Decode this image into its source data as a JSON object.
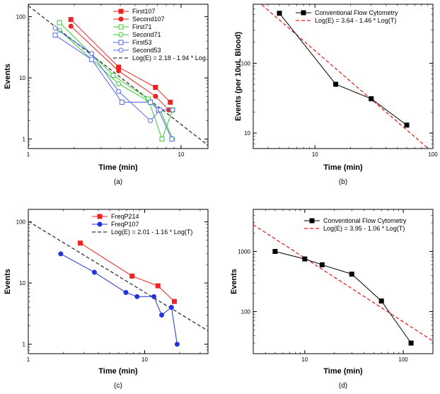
{
  "chart_data": [
    {
      "id": "a",
      "caption": "(a)",
      "type": "line",
      "xscale": "log",
      "yscale": "log",
      "xlim": [
        1,
        15
      ],
      "ylim": [
        0.7,
        160
      ],
      "xticks": [
        1,
        10
      ],
      "yticks": [
        1,
        10,
        100
      ],
      "xlabel": "Time (min)",
      "ylabel": "Events",
      "legend_position": "top-right",
      "series": [
        {
          "name": "First107",
          "color": "#ee2222",
          "marker": "filled-square",
          "x": [
            1.9,
            3.9,
            6.8,
            8.5
          ],
          "y": [
            90,
            15,
            7,
            4
          ]
        },
        {
          "name": "Second107",
          "color": "#ee2222",
          "marker": "filled-circle",
          "x": [
            1.9,
            3.9,
            6.8,
            8.3
          ],
          "y": [
            70,
            13,
            5,
            3
          ]
        },
        {
          "name": "First71",
          "color": "#33cc33",
          "marker": "open-square",
          "x": [
            1.6,
            3.6,
            6.1,
            7.5,
            8.8
          ],
          "y": [
            80,
            11,
            4.5,
            1,
            3
          ]
        },
        {
          "name": "Second71",
          "color": "#33cc33",
          "marker": "open-circle",
          "x": [
            1.6,
            3.9,
            6.3,
            7.3,
            8.8
          ],
          "y": [
            60,
            8,
            4,
            3,
            1
          ]
        },
        {
          "name": "First53",
          "color": "#5566ee",
          "marker": "open-square",
          "x": [
            1.5,
            2.6,
            4.1,
            6.3,
            7.1,
            8.7
          ],
          "y": [
            50,
            20,
            4,
            4,
            3,
            1
          ]
        },
        {
          "name": "Second53",
          "color": "#5566ee",
          "marker": "open-circle",
          "x": [
            1.5,
            2.6,
            3.9,
            6.3,
            7.3,
            8.8
          ],
          "y": [
            65,
            25,
            6,
            2,
            3,
            3
          ]
        }
      ],
      "fit": {
        "label": "Log(E) = 2.18 - 1.94 * Log",
        "intercept": 2.18,
        "slope": -1.94,
        "color": "#333333"
      }
    },
    {
      "id": "b",
      "caption": "(b)",
      "type": "line",
      "xscale": "log",
      "yscale": "log",
      "xlim": [
        3,
        100
      ],
      "ylim": [
        6,
        700
      ],
      "xticks": [
        10,
        100
      ],
      "yticks": [
        10,
        100
      ],
      "xlabel": "Time (min)",
      "ylabel": "Events (per 10uL Blood)",
      "legend_position": "top-right",
      "series": [
        {
          "name": "Conventional Flow Cytometry",
          "color": "#000000",
          "marker": "filled-square",
          "x": [
            5,
            15,
            30,
            60
          ],
          "y": [
            520,
            50,
            31,
            13
          ]
        }
      ],
      "fit": {
        "label": "Log(E) = 3.64 - 1.46 * Log(T)",
        "intercept": 3.64,
        "slope": -1.46,
        "color": "#ee2222"
      }
    },
    {
      "id": "c",
      "caption": "(c)",
      "type": "line",
      "xscale": "log",
      "yscale": "log",
      "xlim": [
        1,
        35
      ],
      "ylim": [
        0.7,
        160
      ],
      "xticks": [
        1,
        10
      ],
      "yticks": [
        1,
        10,
        100
      ],
      "xlabel": "Time (min)",
      "ylabel": "Events",
      "legend_position": "top-right",
      "series": [
        {
          "name": "FreqP214",
          "color": "#ee2222",
          "marker": "filled-square",
          "x": [
            2.8,
            7.8,
            13,
            18
          ],
          "y": [
            45,
            13,
            9,
            5
          ]
        },
        {
          "name": "FreqP107",
          "color": "#2233dd",
          "marker": "filled-circle",
          "x": [
            1.9,
            3.7,
            6.9,
            8.6,
            12,
            14,
            17,
            19
          ],
          "y": [
            30,
            15,
            7,
            6,
            6,
            3,
            4,
            1
          ]
        }
      ],
      "fit": {
        "label": "Log(E) = 2.01 - 1.16 * Log(T)",
        "intercept": 2.01,
        "slope": -1.16,
        "color": "#333333"
      }
    },
    {
      "id": "d",
      "caption": "(d)",
      "type": "line",
      "xscale": "log",
      "yscale": "log",
      "xlim": [
        3,
        200
      ],
      "ylim": [
        20,
        5000
      ],
      "xticks": [
        10,
        100
      ],
      "yticks": [
        100,
        1000
      ],
      "xlabel": "Time (min)",
      "ylabel": "Events",
      "legend_position": "top-right",
      "series": [
        {
          "name": "Conventional Flow Cytometry",
          "color": "#000000",
          "marker": "filled-square",
          "x": [
            5,
            10,
            15,
            30,
            60,
            120
          ],
          "y": [
            1000,
            750,
            600,
            420,
            150,
            30
          ]
        }
      ],
      "fit": {
        "label": "Log(E) = 3.95 - 1.06 * Log(T)",
        "intercept": 3.95,
        "slope": -1.06,
        "color": "#ee2222"
      }
    }
  ]
}
